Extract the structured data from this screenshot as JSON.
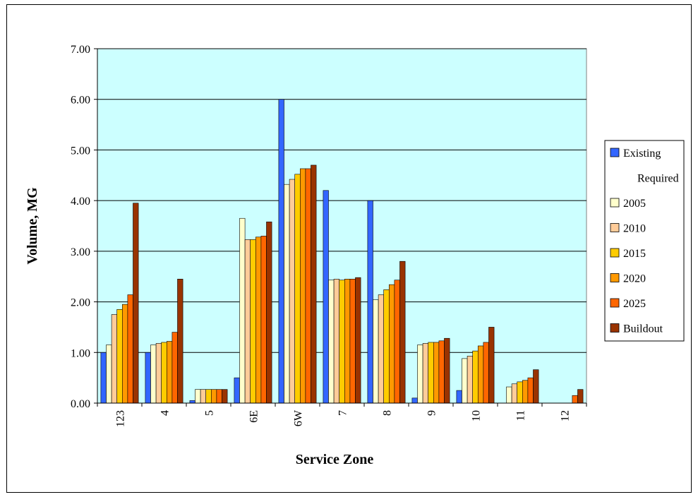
{
  "chart_data": {
    "type": "bar",
    "title": "",
    "xlabel": "Service Zone",
    "ylabel": "Volume, MG",
    "ylim": [
      0,
      7
    ],
    "yticks": [
      "0.00",
      "1.00",
      "2.00",
      "3.00",
      "4.00",
      "5.00",
      "6.00",
      "7.00"
    ],
    "grid": true,
    "legend_position": "right",
    "plot_background": "#ccffff",
    "categories": [
      "123",
      "4",
      "5",
      "6E",
      "6W",
      "7",
      "8",
      "9",
      "10",
      "11",
      "12"
    ],
    "legend_note": "Required",
    "series": [
      {
        "name": "Existing",
        "color": "#3366ff",
        "values": [
          1.0,
          1.0,
          0.05,
          0.5,
          6.0,
          4.2,
          4.0,
          0.1,
          0.25,
          0.0,
          0.0
        ]
      },
      {
        "name": "2005",
        "color": "#ffffcc",
        "values": [
          1.15,
          1.15,
          0.27,
          3.65,
          4.32,
          2.43,
          2.04,
          1.15,
          0.88,
          0.32,
          0.0
        ]
      },
      {
        "name": "2010",
        "color": "#ffcc99",
        "values": [
          1.75,
          1.18,
          0.27,
          3.23,
          4.42,
          2.45,
          2.14,
          1.18,
          0.93,
          0.38,
          0.0
        ]
      },
      {
        "name": "2015",
        "color": "#ffcc00",
        "values": [
          1.85,
          1.2,
          0.27,
          3.23,
          4.52,
          2.43,
          2.24,
          1.2,
          1.03,
          0.42,
          0.0
        ]
      },
      {
        "name": "2020",
        "color": "#ff9900",
        "values": [
          1.95,
          1.22,
          0.27,
          3.28,
          4.63,
          2.45,
          2.34,
          1.2,
          1.13,
          0.45,
          0.0
        ]
      },
      {
        "name": "2025",
        "color": "#ff6600",
        "values": [
          2.14,
          1.4,
          0.27,
          3.3,
          4.63,
          2.45,
          2.43,
          1.23,
          1.2,
          0.5,
          0.15
        ]
      },
      {
        "name": "Buildout",
        "color": "#993300",
        "values": [
          3.95,
          2.45,
          0.27,
          3.58,
          4.7,
          2.48,
          2.8,
          1.28,
          1.5,
          0.66,
          0.27
        ]
      }
    ]
  }
}
